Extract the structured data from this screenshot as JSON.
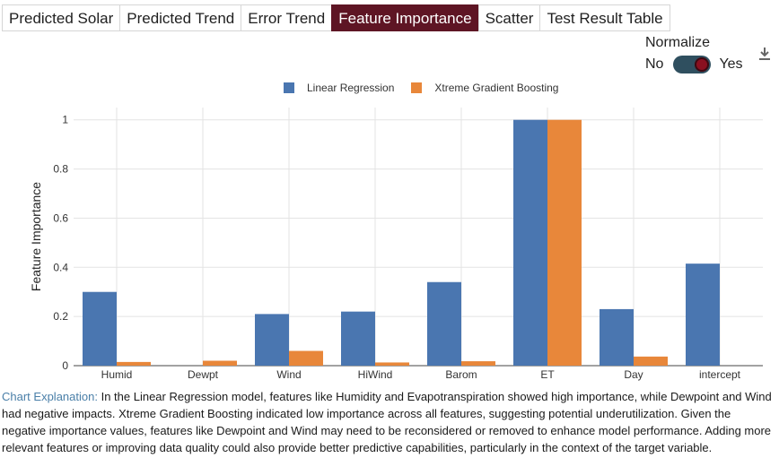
{
  "tabs": [
    {
      "label": "Predicted Solar"
    },
    {
      "label": "Predicted Trend"
    },
    {
      "label": "Error Trend"
    },
    {
      "label": "Feature Importance",
      "active": true
    },
    {
      "label": "Scatter"
    },
    {
      "label": "Test Result Table"
    }
  ],
  "normalize": {
    "label": "Normalize",
    "off_label": "No",
    "on_label": "Yes",
    "value": "Yes"
  },
  "icons": {
    "download": "download-icon"
  },
  "colors": {
    "linear": "#4a76b0",
    "xgb": "#e8873a",
    "active_tab": "#5e1524",
    "explanation_title": "#4a7fa8"
  },
  "chart_data": {
    "type": "bar",
    "categories": [
      "Humid",
      "Dewpt",
      "Wind",
      "HiWind",
      "Barom",
      "ET",
      "Day",
      "intercept"
    ],
    "series": [
      {
        "name": "Linear Regression",
        "values": [
          0.3,
          0,
          0.21,
          0.22,
          0.34,
          1.0,
          0.23,
          0.415
        ]
      },
      {
        "name": "Xtreme Gradient Boosting",
        "values": [
          0.015,
          0.02,
          0.06,
          0.013,
          0.018,
          1.0,
          0.037,
          0
        ]
      }
    ],
    "ylabel": "Feature Importance",
    "ylim": [
      0,
      1.05
    ],
    "yticks": [
      "0",
      "0.2",
      "0.4",
      "0.6",
      "0.8",
      "1"
    ],
    "legend": "top-center",
    "grid": true
  },
  "explanation": {
    "title": "Chart Explanation:",
    "text": "In the Linear Regression model, features like Humidity and Evapotranspiration showed high importance, while Dewpoint and Wind had negative impacts. Xtreme Gradient Boosting indicated low importance across all features, suggesting potential underutilization. Given the negative importance values, features like Dewpoint and Wind may need to be reconsidered or removed to enhance model performance. Adding more relevant features or improving data quality could also provide better predictive capabilities, particularly in the context of the target variable."
  }
}
